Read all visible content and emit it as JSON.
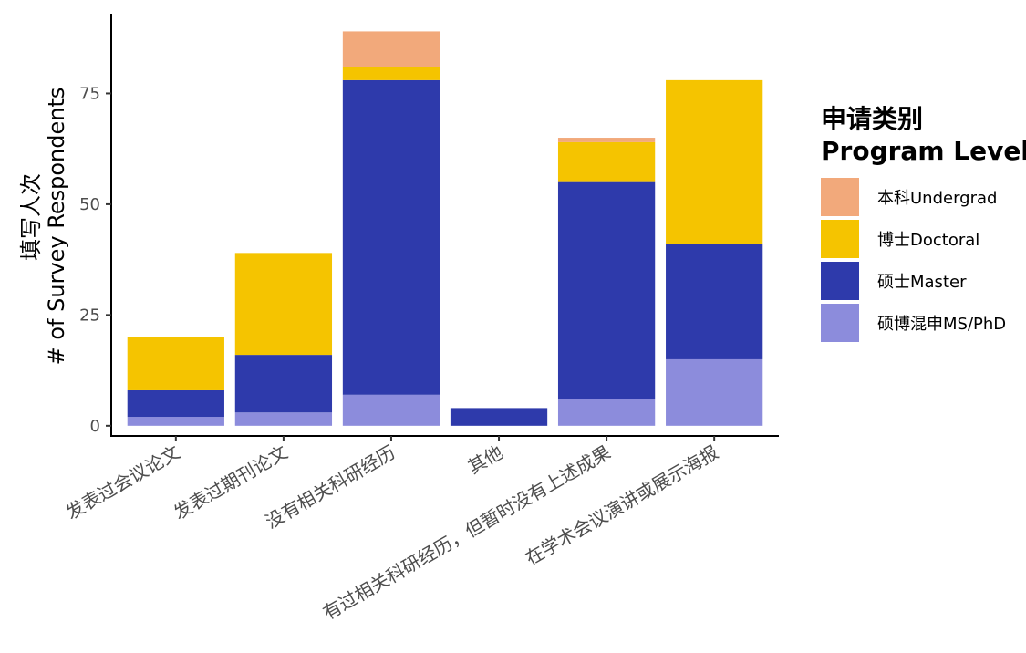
{
  "chart_data": {
    "type": "bar",
    "stacked": true,
    "categories": [
      "发表过会议论文",
      "发表过期刊论文",
      "没有相关科研经历",
      "其他",
      "有过相关科研经历，但暂时没有上述成果",
      "在学术会议演讲或展示海报"
    ],
    "series": [
      {
        "name": "硕博混申MS/PhD",
        "color": "#8c8cdc",
        "values": [
          2,
          3,
          7,
          0,
          6,
          15
        ]
      },
      {
        "name": "硕士Master",
        "color": "#2e3aab",
        "values": [
          6,
          13,
          71,
          4,
          49,
          26
        ]
      },
      {
        "name": "博士Doctoral",
        "color": "#f5c400",
        "values": [
          12,
          23,
          3,
          0,
          9,
          37
        ]
      },
      {
        "name": "本科Undergrad",
        "color": "#f2a97b",
        "values": [
          0,
          0,
          8,
          0,
          1,
          0
        ]
      }
    ],
    "legend_order": [
      "本科Undergrad",
      "博士Doctoral",
      "硕士Master",
      "硕博混申MS/PhD"
    ],
    "ylabel_line1": "填写人次",
    "ylabel_line2": "# of Survey Respondents",
    "yticks": [
      0,
      25,
      50,
      75
    ],
    "ytick_labels": [
      "0",
      "25",
      "50",
      "75"
    ],
    "ylim": [
      -2.3,
      93
    ],
    "legend_title_line1": "申请类别",
    "legend_title_line2": "Program Level",
    "legend_position": "right",
    "grid": false
  }
}
